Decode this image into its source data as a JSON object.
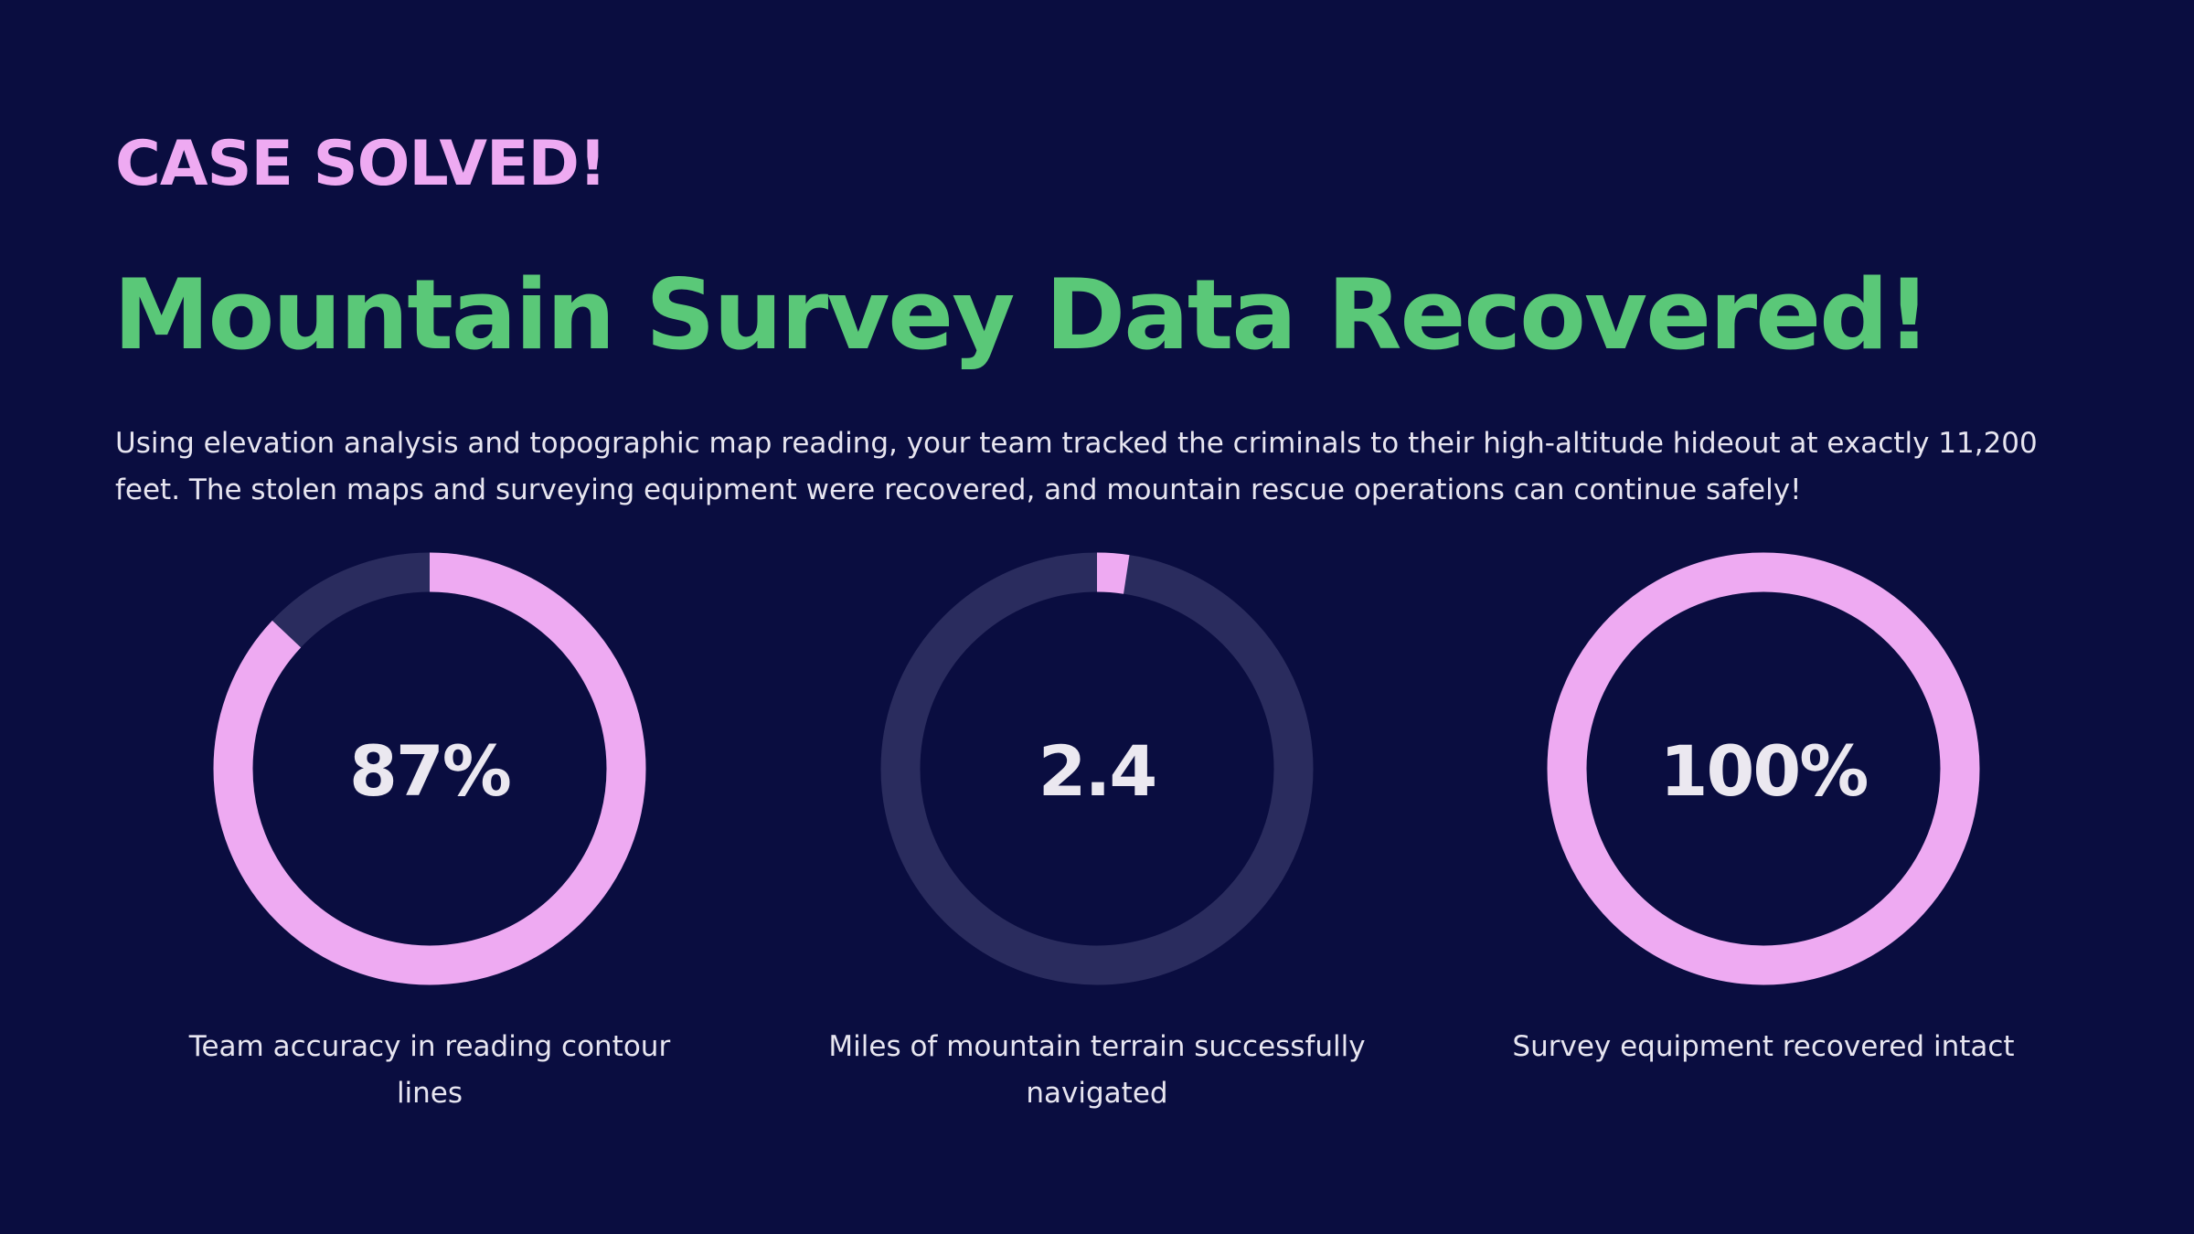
{
  "eyebrow": "CASE SOLVED!",
  "title": "Mountain Survey Data Recovered!",
  "intro": "Using elevation analysis and topographic map reading, your team tracked the criminals to their high-altitude hideout at exactly 11,200 feet. The stolen maps and surveying equipment were recovered, and mountain rescue operations can continue safely!",
  "colors": {
    "background": "#0a0d40",
    "eyebrow": "#eeaaf2",
    "title": "#5ac878",
    "ring_fill": "#eeaaf2",
    "ring_track": "#2a2c5e",
    "text": "#e7e5f0"
  },
  "stats": [
    {
      "value": "87%",
      "label": "Team accuracy in reading contour lines",
      "fill": 0.87
    },
    {
      "value": "2.4",
      "label": "Miles of mountain terrain successfully navigated",
      "fill": 0.024
    },
    {
      "value": "100%",
      "label": "Survey equipment recovered intact",
      "fill": 1.0
    }
  ]
}
